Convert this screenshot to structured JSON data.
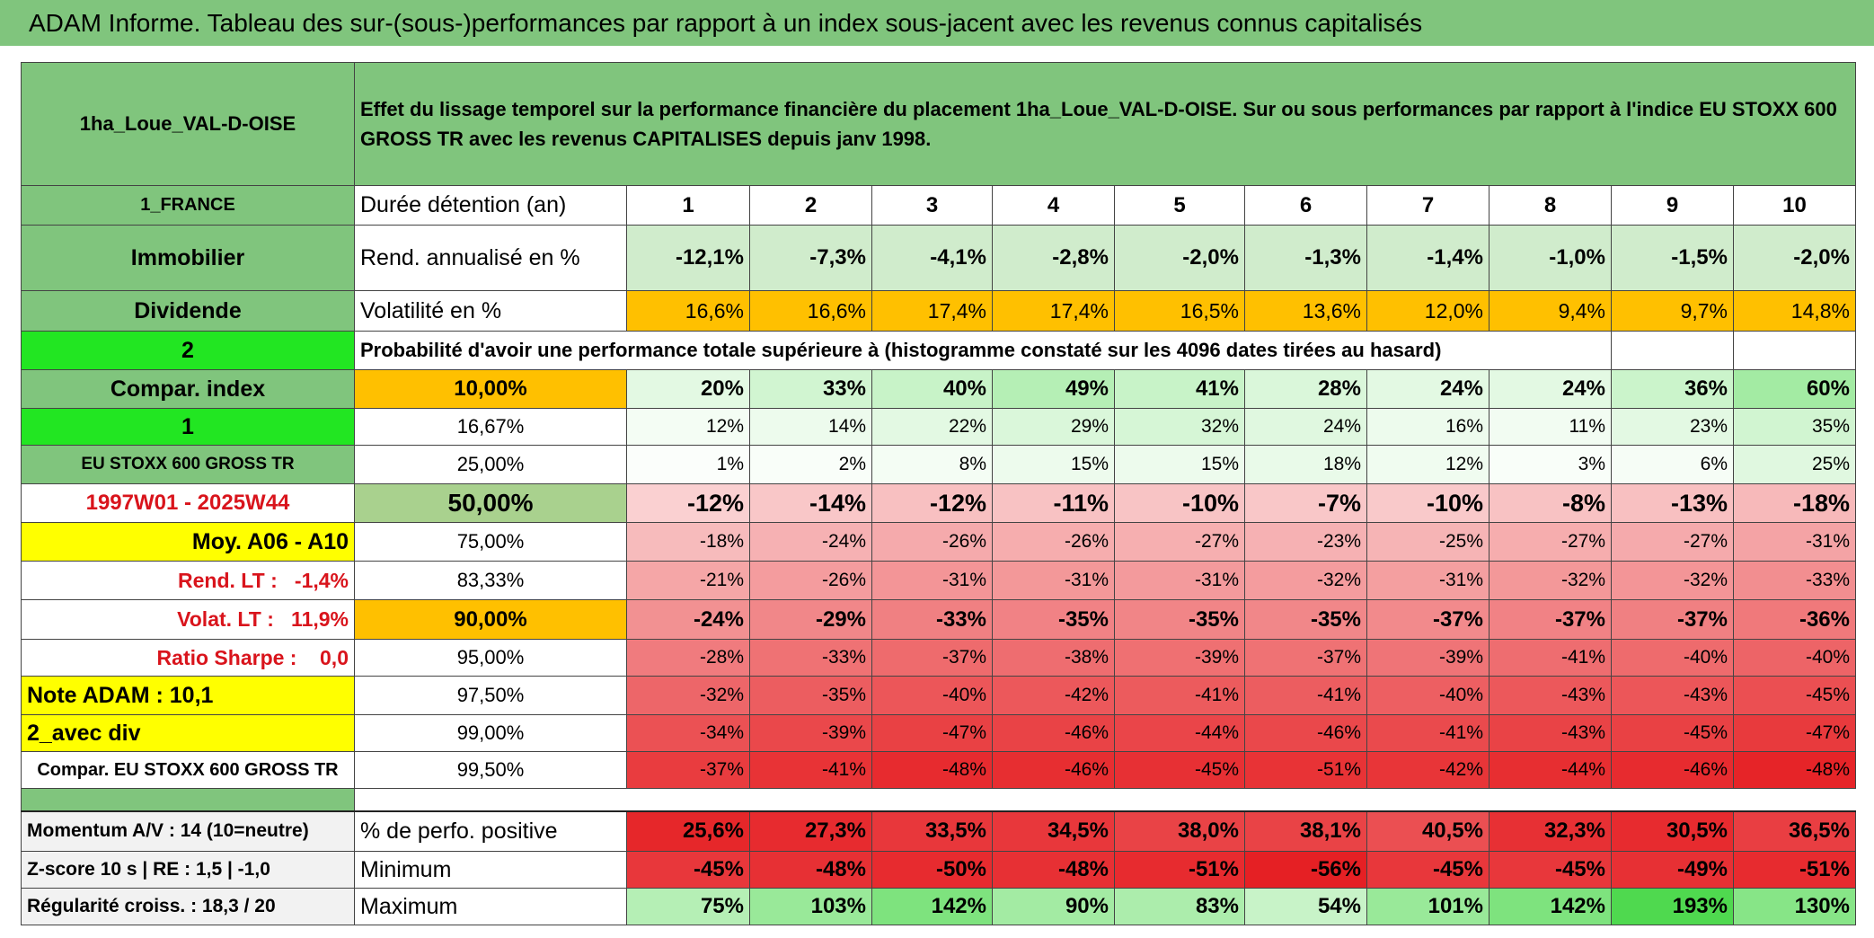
{
  "title": "ADAM Informe. Tableau des sur-(sous-)performances par rapport à un index sous-jacent avec les revenus connus capitalisés",
  "table": {
    "header": {
      "name": "1ha_Loue_VAL-D-OISE",
      "description": "Effet du lissage temporel sur la performance financière du placement 1ha_Loue_VAL-D-OISE. Sur ou sous performances par rapport à l'indice EU STOXX 600 GROSS TR avec les revenus CAPITALISES depuis janv 1998."
    },
    "rows": [
      [
        "1_FRANCE",
        "Durée détention (an)",
        "1",
        "2",
        "3",
        "4",
        "5",
        "6",
        "7",
        "8",
        "9",
        "10"
      ],
      [
        "Immobilier",
        "Rend. annualisé en %",
        "-12,1%",
        "-7,3%",
        "-4,1%",
        "-2,8%",
        "-2,0%",
        "-1,3%",
        "-1,4%",
        "-1,0%",
        "-1,5%",
        "-2,0%"
      ],
      [
        "Dividende",
        "Volatilité en %",
        "16,6%",
        "16,6%",
        "17,4%",
        "17,4%",
        "16,5%",
        "13,6%",
        "12,0%",
        "9,4%",
        "9,7%",
        "14,8%"
      ],
      [
        "2",
        "Probabilité d'avoir une performance totale supérieure à (histogramme constaté sur les 4096 dates tirées au hasard)"
      ],
      [
        "Compar. index",
        "10,00%",
        "20%",
        "33%",
        "40%",
        "49%",
        "41%",
        "28%",
        "24%",
        "24%",
        "36%",
        "60%"
      ],
      [
        "1",
        "16,67%",
        "12%",
        "14%",
        "22%",
        "29%",
        "32%",
        "24%",
        "16%",
        "11%",
        "23%",
        "35%"
      ],
      [
        "EU STOXX 600 GROSS TR",
        "25,00%",
        "1%",
        "2%",
        "8%",
        "15%",
        "15%",
        "18%",
        "12%",
        "3%",
        "6%",
        "25%"
      ],
      [
        "1997W01 - 2025W44",
        "50,00%",
        "-12%",
        "-14%",
        "-12%",
        "-11%",
        "-10%",
        "-7%",
        "-10%",
        "-8%",
        "-13%",
        "-18%"
      ],
      [
        "Moy. A06 - A10",
        "75,00%",
        "-18%",
        "-24%",
        "-26%",
        "-26%",
        "-27%",
        "-23%",
        "-25%",
        "-27%",
        "-27%",
        "-31%"
      ],
      [
        "Rend. LT :   -1,4%",
        "83,33%",
        "-21%",
        "-26%",
        "-31%",
        "-31%",
        "-31%",
        "-32%",
        "-31%",
        "-32%",
        "-32%",
        "-33%"
      ],
      [
        "Volat. LT :   11,9%",
        "90,00%",
        "-24%",
        "-29%",
        "-33%",
        "-35%",
        "-35%",
        "-35%",
        "-37%",
        "-37%",
        "-37%",
        "-36%"
      ],
      [
        "Ratio Sharpe :    0,0",
        "95,00%",
        "-28%",
        "-33%",
        "-37%",
        "-38%",
        "-39%",
        "-37%",
        "-39%",
        "-41%",
        "-40%",
        "-40%"
      ],
      [
        "Note ADAM : 10,1",
        "97,50%",
        "-32%",
        "-35%",
        "-40%",
        "-42%",
        "-41%",
        "-41%",
        "-40%",
        "-43%",
        "-43%",
        "-45%"
      ],
      [
        "2_avec div",
        "99,00%",
        "-34%",
        "-39%",
        "-47%",
        "-46%",
        "-44%",
        "-46%",
        "-41%",
        "-43%",
        "-45%",
        "-47%"
      ],
      [
        "Compar. EU STOXX 600 GROSS TR",
        "99,50%",
        "-37%",
        "-41%",
        "-48%",
        "-46%",
        "-45%",
        "-51%",
        "-42%",
        "-44%",
        "-46%",
        "-48%"
      ],
      [
        "Momentum A/V : 14 (10=neutre)",
        "% de perfo. positive",
        "25,6%",
        "27,3%",
        "33,5%",
        "34,5%",
        "38,0%",
        "38,1%",
        "40,5%",
        "32,3%",
        "30,5%",
        "36,5%"
      ],
      [
        "Z-score 10 s | RE : 1,5 | -1,0",
        "Minimum",
        "-45%",
        "-48%",
        "-50%",
        "-48%",
        "-51%",
        "-56%",
        "-45%",
        "-45%",
        "-49%",
        "-51%"
      ],
      [
        "Régularité croiss. : 18,3 / 20",
        "Maximum",
        "75%",
        "103%",
        "142%",
        "90%",
        "83%",
        "54%",
        "101%",
        "142%",
        "193%",
        "130%"
      ]
    ]
  }
}
